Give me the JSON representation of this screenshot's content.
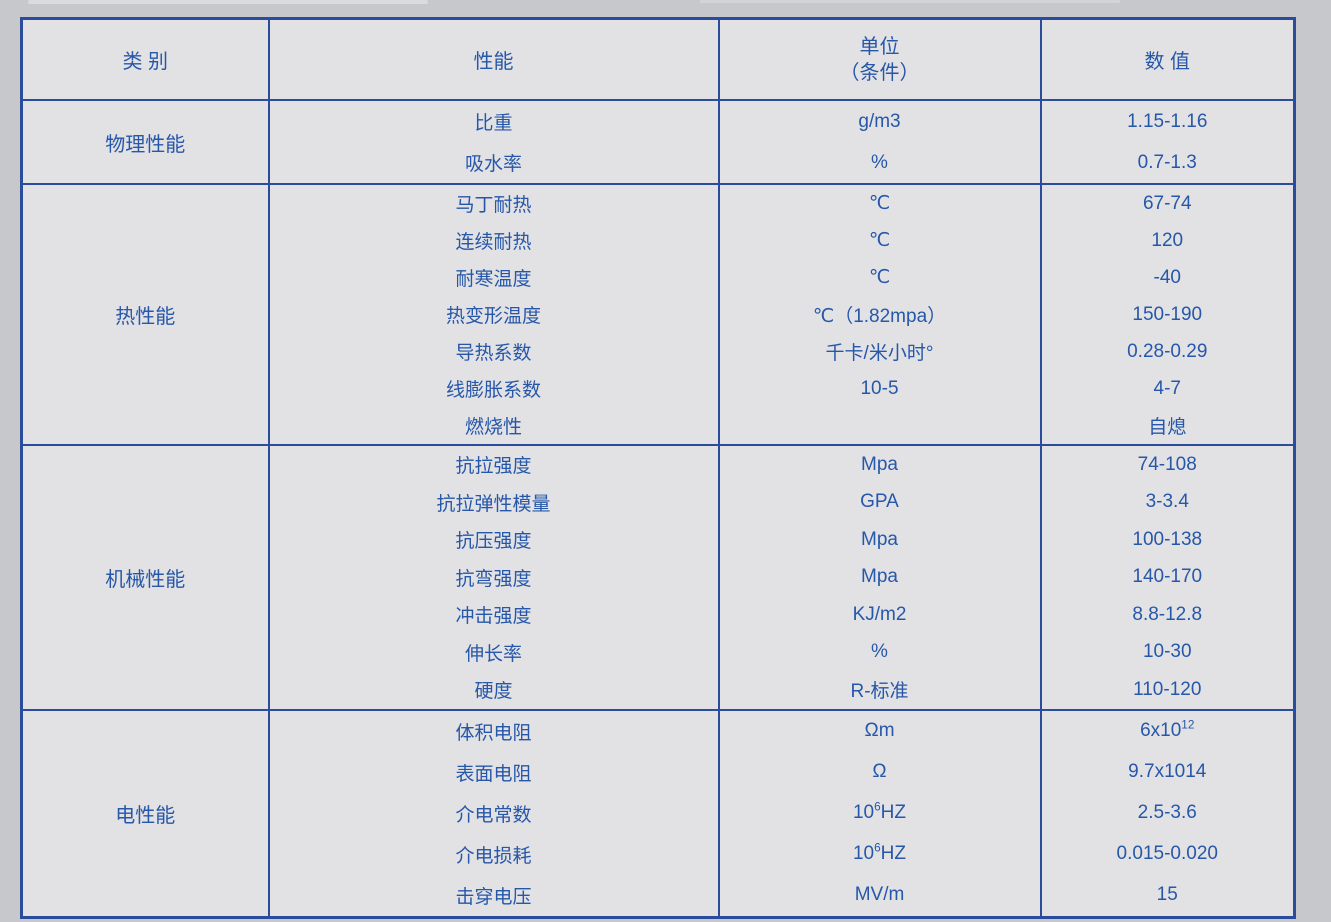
{
  "colors": {
    "page_background": "#c7c8cb",
    "cell_background": "#e2e2e5",
    "border_blue": "#2a4c9a",
    "text_blue": "#2657a9"
  },
  "table": {
    "header": {
      "category": "类 别",
      "property": "性能",
      "unit_line1": "单位",
      "unit_line2": "（条件）",
      "value": "数 值"
    },
    "sections": [
      {
        "category": "物理性能",
        "row_class": "h41",
        "rows": [
          {
            "property": "比重",
            "unit": "g/m3",
            "value": "1.15-1.16"
          },
          {
            "property": "吸水率",
            "unit": "%",
            "value": "0.7-1.3"
          }
        ]
      },
      {
        "category": "热性能",
        "row_class": "h37",
        "rows": [
          {
            "property": "马丁耐热",
            "unit": "℃",
            "value": "67-74"
          },
          {
            "property": "连续耐热",
            "unit": "℃",
            "value": "120"
          },
          {
            "property": "耐寒温度",
            "unit": "℃",
            "value": "-40"
          },
          {
            "property": "热变形温度",
            "unit": "℃（1.82mpa）",
            "value": "150-190"
          },
          {
            "property": "导热系数",
            "unit": "千卡/米小时°",
            "value": "0.28-0.29"
          },
          {
            "property": "线膨胀系数",
            "unit": "10-5",
            "value": "4-7"
          },
          {
            "property": "燃烧性",
            "unit": "",
            "value": "自熄"
          }
        ]
      },
      {
        "category": "机械性能",
        "row_class": "h375",
        "rows": [
          {
            "property": "抗拉强度",
            "unit": "Mpa",
            "value": "74-108"
          },
          {
            "property": "抗拉弹性模量",
            "unit": "GPA",
            "value": "3-3.4"
          },
          {
            "property": "抗压强度",
            "unit": "Mpa",
            "value": "100-138"
          },
          {
            "property": "抗弯强度",
            "unit": "Mpa",
            "value": "140-170"
          },
          {
            "property": "冲击强度",
            "unit": "KJ/m2",
            "value": "8.8-12.8"
          },
          {
            "property": "伸长率",
            "unit": "%",
            "value": "10-30"
          },
          {
            "property": "硬度",
            "unit": "R-标准",
            "value": "110-120"
          }
        ]
      },
      {
        "category": "电性能",
        "row_class": "h41",
        "rows": [
          {
            "property": "体积电阻",
            "unit": "Ωm",
            "value": "6x10^12^"
          },
          {
            "property": "表面电阻",
            "unit": "Ω",
            "value": "9.7x1014"
          },
          {
            "property": "介电常数",
            "unit": "10^6^HZ",
            "value": "2.5-3.6"
          },
          {
            "property": "介电损耗",
            "unit": "10^6^HZ",
            "value": "0.015-0.020"
          },
          {
            "property": "击穿电压",
            "unit": "MV/m",
            "value": "15"
          }
        ]
      }
    ]
  }
}
